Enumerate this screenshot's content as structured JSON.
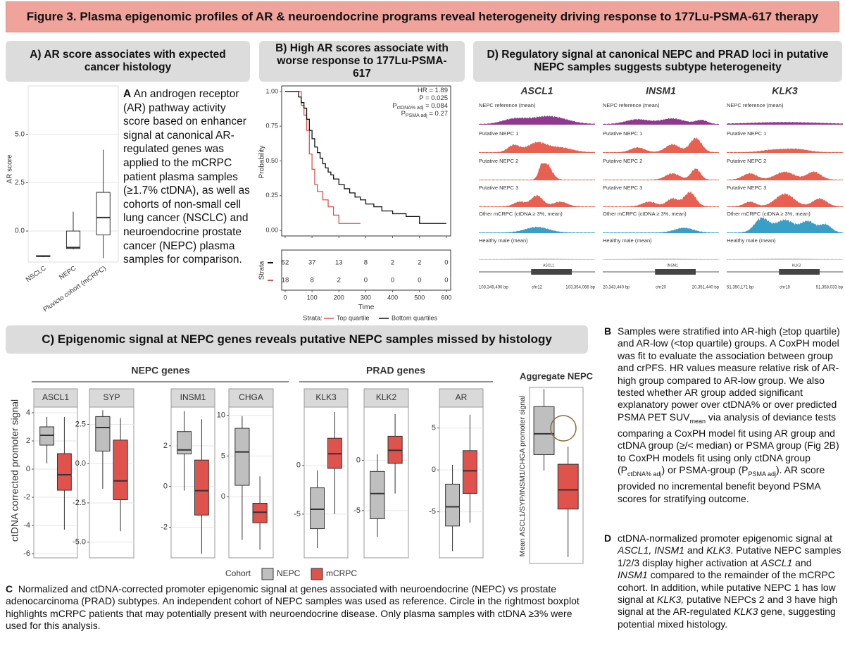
{
  "header": {
    "title": "Figure 3. Plasma epigenomic profiles of AR & neuroendocrine programs reveal heterogeneity driving response to 177Lu-PSMA-617 therapy"
  },
  "panel_a": {
    "title": "A) AR score associates with expected cancer histology",
    "chart": {
      "type": "box",
      "y_label": "AR score",
      "grid": true,
      "color": "#ffffff",
      "categories": [
        "NSCLC",
        "NEPC",
        "Pluvicto cohort (mCRPC)"
      ],
      "ylim": [
        -1.6,
        7.5
      ],
      "yticks": [
        {
          "value": 0,
          "label": "0.0"
        },
        2.5,
        {
          "value": 5,
          "label": "5.0"
        }
      ],
      "boxes": [
        {
          "min": -1.35,
          "q1": -1.32,
          "median": -1.3,
          "q3": -1.27,
          "max": -1.25
        },
        {
          "min": -0.95,
          "q1": -0.9,
          "median": -0.85,
          "q3": 0,
          "max": 1
        },
        {
          "min": -1.4,
          "q1": -0.2,
          "median": 0.7,
          "q3": 2.0,
          "max": 4.2
        }
      ]
    },
    "label": "A",
    "text": "An androgen receptor (AR) pathway activity score based on enhancer signal at canonical AR-regulated genes was applied to the mCRPC patient plasma samples (≥1.7% ctDNA), as well as cohorts of non-small cell lung cancer (NSCLC) and neuroendocrine prostate cancer (NEPC) plasma samples for comparison."
  },
  "panel_b": {
    "title": "B) High AR scores associate with worse response to 177Lu-PSMA-617",
    "chart": {
      "type": "step",
      "y_label": "Probability",
      "x_label": "Time",
      "legend_title": "Strata:",
      "table_label": "Strata",
      "xlim": [
        -13,
        616
      ],
      "xticks": [
        0,
        100,
        200,
        300,
        400,
        500,
        600
      ],
      "ylim": [
        -0.04,
        1.04
      ],
      "yticks": [
        {
          "value": 0,
          "label": "0.00"
        },
        {
          "value": 0.25,
          "label": "0.25"
        },
        {
          "value": 0.5,
          "label": "0.50"
        },
        {
          "value": 0.75,
          "label": "0.75"
        },
        {
          "value": 1,
          "label": "1.00"
        }
      ],
      "stats": [
        {
          "text": "HR = 1.89"
        },
        {
          "text": "P = 0.025"
        },
        {
          "text": "P",
          "sub": "ctDNA% adj",
          "tail": " = 0.084"
        },
        {
          "text": "P",
          "sub": "PSMA adj",
          "tail": " = 0.27"
        }
      ],
      "series": [
        {
          "name": "Top quartile",
          "color": "#e0524c",
          "x": [
            0,
            40,
            60,
            70,
            80,
            90,
            100,
            110,
            120,
            140,
            160,
            180,
            200,
            280
          ],
          "y": [
            1,
            1,
            0.9,
            0.83,
            0.72,
            0.55,
            0.44,
            0.33,
            0.28,
            0.22,
            0.17,
            0.11,
            0.05,
            0.05
          ],
          "at_risk": [
            18,
            8,
            2,
            0,
            0,
            0,
            0
          ]
        },
        {
          "name": "Bottom quartiles",
          "color": "#111111",
          "x": [
            0,
            30,
            50,
            60,
            70,
            80,
            90,
            100,
            110,
            120,
            130,
            140,
            150,
            160,
            170,
            180,
            200,
            220,
            240,
            260,
            280,
            300,
            330,
            360,
            400,
            450,
            500,
            600
          ],
          "y": [
            1,
            1,
            0.96,
            0.92,
            0.88,
            0.8,
            0.72,
            0.66,
            0.6,
            0.56,
            0.52,
            0.48,
            0.45,
            0.42,
            0.4,
            0.37,
            0.33,
            0.3,
            0.27,
            0.24,
            0.22,
            0.19,
            0.17,
            0.14,
            0.12,
            0.1,
            0.05,
            0.05
          ],
          "at_risk": [
            52,
            37,
            13,
            8,
            2,
            2,
            0
          ]
        }
      ]
    }
  },
  "panel_d": {
    "title": "D) Regulatory signal at canonical NEPC and PRAD loci in putative NEPC samples suggests subtype heterogeneity",
    "track_labels": [
      "NEPC reference (mean)",
      "Putative NEPC 1",
      "Putative NEPC 2",
      "Putative NEPC 3",
      "Other mCRPC (ctDNA ≥ 3%, mean)",
      "Healthy male (mean)"
    ],
    "genes": [
      {
        "name": "ASCL1",
        "start": "103,349,490 bp",
        "chrom": "chr12",
        "end": "103,354,066 bp"
      },
      {
        "name": "INSM1",
        "start": "20,343,440 bp",
        "chrom": "chr20",
        "end": "20,351,440 bp"
      },
      {
        "name": "KLK3",
        "start": "51,350,171 bp",
        "chrom": "chr19",
        "end": "51,358,033 bp"
      }
    ]
  },
  "panel_c": {
    "title": "C) Epigenomic signal at NEPC genes reveals putative NEPC samples missed by histology",
    "nepc_label": "NEPC genes",
    "prad_label": "PRAD genes",
    "y_label": "ctDNA corrected promoter signal",
    "legend_title": "Cohort",
    "grid": true,
    "series": [
      {
        "name": "NEPC",
        "color": "#bfbfbf"
      },
      {
        "name": "mCRPC",
        "color": "#e0524c"
      }
    ],
    "plots": [
      {
        "type": "box",
        "title": "ASCL1",
        "ylim": [
          -6.3,
          4.4
        ],
        "yticks": [
          4,
          2,
          0,
          -2,
          -4,
          -6
        ],
        "boxes": [
          {
            "min": 0.4,
            "q1": 1.7,
            "median": 2.4,
            "q3": 3.0,
            "max": 3.7
          },
          {
            "min": -4.3,
            "q1": -1.5,
            "median": -0.4,
            "q3": 1.1,
            "max": 3.7
          }
        ]
      },
      {
        "type": "box",
        "title": "SYP",
        "ylim": [
          -6.0,
          3.6
        ],
        "yticks": [
          2.5,
          {
            "value": 0,
            "label": "0.0"
          },
          -2.5,
          {
            "value": -5,
            "label": "-5.0"
          }
        ],
        "boxes": [
          {
            "min": -1.6,
            "q1": 0.8,
            "median": 2.3,
            "q3": 3.0,
            "max": 3.4
          },
          {
            "min": -4.3,
            "q1": -2.3,
            "median": -1.1,
            "q3": 1.5,
            "max": 2.9
          }
        ]
      },
      {
        "type": "box",
        "title": "INSM1",
        "ylim": [
          -3.5,
          3.9
        ],
        "yticks": [
          2,
          0,
          -2
        ],
        "boxes": [
          {
            "min": -0.2,
            "q1": 1.6,
            "median": 1.8,
            "q3": 2.7,
            "max": 3.7
          },
          {
            "min": -3.3,
            "q1": -1.4,
            "median": -0.2,
            "q3": 1.3,
            "max": 3.3
          }
        ]
      },
      {
        "type": "box",
        "title": "CHGA",
        "ylim": [
          -7.5,
          11.0
        ],
        "yticks": [
          10,
          5,
          0
        ],
        "boxes": [
          {
            "min": -5.3,
            "q1": 1.4,
            "median": 5.5,
            "q3": 8.4,
            "max": 9.9
          },
          {
            "min": -6.5,
            "q1": -3.2,
            "median": -1.9,
            "q3": -0.8,
            "max": 2.5
          }
        ]
      },
      {
        "type": "box",
        "title": "KLK3",
        "ylim": [
          -9.5,
          6.0
        ],
        "yticks": [
          0,
          -5
        ],
        "boxes": [
          {
            "min": -8.5,
            "q1": -6.5,
            "median": -4.5,
            "q3": -2.3,
            "max": -0.5
          },
          {
            "min": -5.0,
            "q1": -0.3,
            "median": 1.2,
            "q3": 2.8,
            "max": 5.5
          }
        ]
      },
      {
        "type": "box",
        "title": "KLK2",
        "ylim": [
          -9.7,
          5.3
        ],
        "yticks": [
          0,
          -5
        ],
        "boxes": [
          {
            "min": -7.6,
            "q1": -5.8,
            "median": -3.3,
            "q3": -1.1,
            "max": 0.6
          },
          {
            "min": -3.3,
            "q1": -0.3,
            "median": 1.0,
            "q3": 2.4,
            "max": 4.6
          }
        ]
      },
      {
        "type": "box",
        "title": "AR",
        "ylim": [
          -10.5,
          7.5
        ],
        "yticks": [
          5,
          0,
          -5
        ],
        "boxes": [
          {
            "min": -9.7,
            "q1": -6.7,
            "median": -4.4,
            "q3": -1.7,
            "max": 0.6
          },
          {
            "min": -6.3,
            "q1": -2.8,
            "median": -0.1,
            "q3": 2.3,
            "max": 6.6
          }
        ]
      }
    ],
    "aggregate": {
      "type": "box",
      "title": "Aggregate NEPC",
      "y_label": "Mean ASCL1/SYP/INSM1/CHGA promoter signal",
      "ylim": [
        -4.0,
        1.5
      ],
      "boxes": [
        {
          "min": -1.1,
          "q1": -0.6,
          "median": 0.05,
          "q3": 0.9,
          "max": 1.45
        },
        {
          "min": -3.8,
          "q1": -2.3,
          "median": -1.7,
          "q3": -0.9,
          "max": -0.35
        }
      ]
    },
    "caption_label": "C",
    "caption": "Normalized and ctDNA-corrected promoter epigenomic signal at genes associated with neuroendocrine (NEPC) vs prostate adenocarcinoma (PRAD) subtypes. An independent cohort of NEPC samples was used as reference. Circle in the rightmost boxplot highlights mCRPC patients that may potentially present with neuroendocrine disease. Only plasma samples with ctDNA ≥3% were used for this analysis."
  },
  "text_b": {
    "label": "B",
    "runs": [
      "Samples were stratified into AR-high (≥top quartile) and AR-low (<top quartile) groups. A CoxPH model was fit to evaluate the association between group and crPFS. HR values measure relative risk of AR-high group compared to AR-low group. We also tested whether AR group added significant explanatory power over ctDNA% or over predicted PSMA PET SUV",
      "mean",
      " via analysis of deviance tests comparing a CoxPH model fit using AR group and ctDNA group (≥/< median) or PSMA group (Fig 2B) to CoxPH models fit using only ctDNA group (P",
      "ctDNA% adj",
      ") or PSMA-group (P",
      "PSMA adj",
      "). AR score provided no incremental benefit beyond PSMA scores for stratifying outcome."
    ]
  },
  "text_d": {
    "label": "D",
    "runs": [
      "ctDNA-normalized promoter epigenomic signal at ",
      "ASCL1, INSM1",
      " and ",
      "KLK3",
      ". Putative NEPC samples 1/2/3 display higher activation at ",
      "ASCL1",
      " and ",
      "INSM1",
      " compared to the remainder of the mCRPC cohort. In addition, while putative NEPC 1 has low signal at ",
      "KLK3,",
      " putative NEPCs 2 and 3 have high signal at the AR-regulated ",
      "KLK3",
      " gene, suggesting potential mixed histology."
    ]
  }
}
